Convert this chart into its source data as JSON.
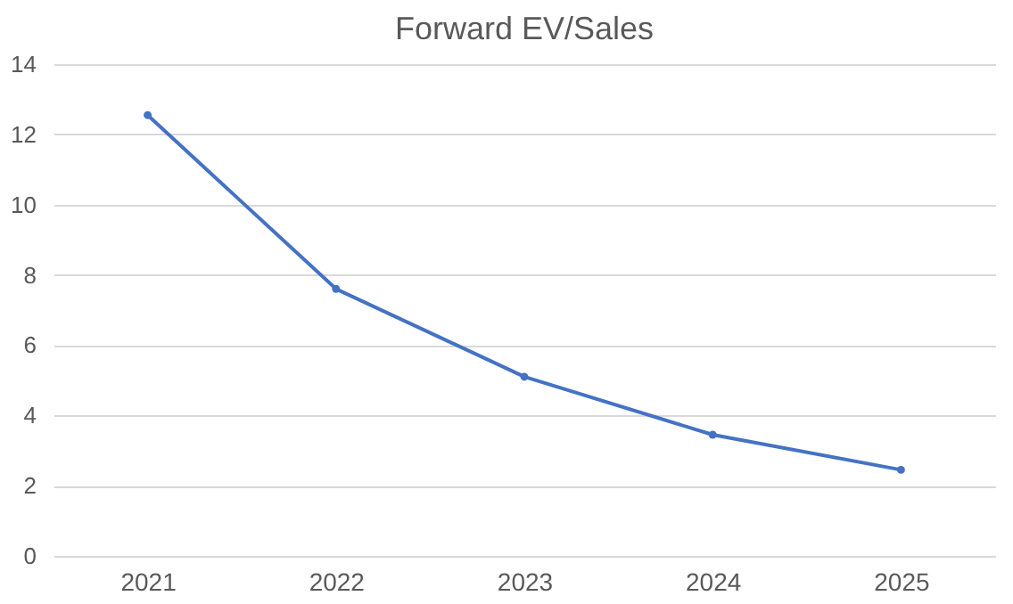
{
  "chart_data": {
    "type": "line",
    "title": "Forward EV/Sales",
    "categories": [
      "2021",
      "2022",
      "2023",
      "2024",
      "2025"
    ],
    "series": [
      {
        "color": "#4472c4",
        "values": [
          12.55,
          7.6,
          5.1,
          3.45,
          2.45
        ]
      }
    ],
    "ylim": [
      0,
      14
    ],
    "yticks": [
      0,
      2,
      4,
      6,
      8,
      10,
      12,
      14
    ],
    "grid": "y",
    "marker": "circle",
    "line_style": "solid",
    "legend": false
  }
}
